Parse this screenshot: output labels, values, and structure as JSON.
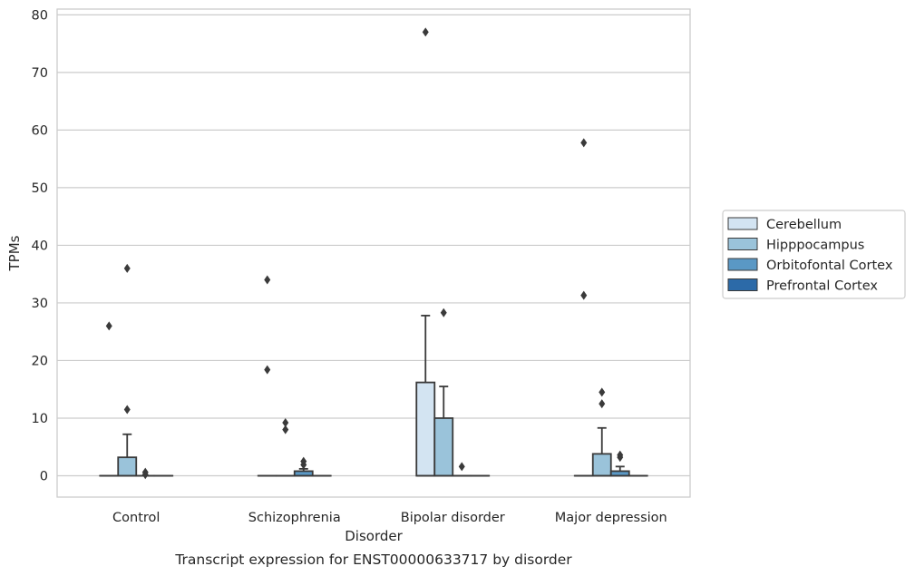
{
  "caption": "Transcript expression for ENST00000633717 by disorder",
  "chart_data": {
    "type": "box",
    "xlabel": "Disorder",
    "ylabel": "TPMs",
    "ylim": [
      -3.7,
      81
    ],
    "yticks": [
      0,
      10,
      20,
      30,
      40,
      50,
      60,
      70,
      80
    ],
    "grid": "horizontal",
    "legend_position": "right",
    "categories": [
      "Control",
      "Schizophrenia",
      "Bipolar disorder",
      "Major depression"
    ],
    "series": [
      {
        "name": "Cerebellum",
        "color": "#d3e4f2",
        "boxes": [
          {
            "q1": 0,
            "median": 0,
            "q3": 0,
            "whisker_low": 0,
            "whisker_high": 0,
            "outliers": [
              26
            ]
          },
          {
            "q1": 0,
            "median": 0,
            "q3": 0,
            "whisker_low": 0,
            "whisker_high": 0,
            "outliers": [
              34,
              18.4
            ]
          },
          {
            "q1": 0,
            "median": 0,
            "q3": 16.2,
            "whisker_low": 0,
            "whisker_high": 27.8,
            "outliers": [
              77
            ]
          },
          {
            "q1": 0,
            "median": 0,
            "q3": 0,
            "whisker_low": 0,
            "whisker_high": 0,
            "outliers": [
              57.8,
              31.3
            ]
          }
        ]
      },
      {
        "name": "Hipppocampus",
        "color": "#9ac3da",
        "boxes": [
          {
            "q1": 0,
            "median": 0,
            "q3": 3.2,
            "whisker_low": 0,
            "whisker_high": 7.2,
            "outliers": [
              36,
              11.5
            ]
          },
          {
            "q1": 0,
            "median": 0,
            "q3": 0,
            "whisker_low": 0,
            "whisker_high": 0,
            "outliers": [
              9.2,
              8
            ]
          },
          {
            "q1": 0,
            "median": 0,
            "q3": 10,
            "whisker_low": 0,
            "whisker_high": 15.5,
            "outliers": [
              28.3
            ]
          },
          {
            "q1": 0,
            "median": 0,
            "q3": 3.8,
            "whisker_low": 0,
            "whisker_high": 8.3,
            "outliers": [
              14.5,
              12.5
            ]
          }
        ]
      },
      {
        "name": "Orbitofontal Cortex",
        "color": "#5a98c5",
        "boxes": [
          {
            "q1": 0,
            "median": 0,
            "q3": 0,
            "whisker_low": 0,
            "whisker_high": 0,
            "outliers": [
              0.6,
              0.2
            ]
          },
          {
            "q1": 0,
            "median": 0,
            "q3": 0.8,
            "whisker_low": 0,
            "whisker_high": 1.2,
            "outliers": [
              2.5,
              1.9
            ]
          },
          {
            "q1": 0,
            "median": 0,
            "q3": 0,
            "whisker_low": 0,
            "whisker_high": 0,
            "outliers": [
              1.6
            ]
          },
          {
            "q1": 0,
            "median": 0,
            "q3": 0.8,
            "whisker_low": 0,
            "whisker_high": 1.6,
            "outliers": [
              3.6,
              3.2
            ]
          }
        ]
      },
      {
        "name": "Prefrontal Cortex",
        "color": "#2c6aa8",
        "boxes": [
          {
            "q1": 0,
            "median": 0,
            "q3": 0,
            "whisker_low": 0,
            "whisker_high": 0,
            "outliers": []
          },
          {
            "q1": 0,
            "median": 0,
            "q3": 0,
            "whisker_low": 0,
            "whisker_high": 0,
            "outliers": []
          },
          {
            "q1": 0,
            "median": 0,
            "q3": 0,
            "whisker_low": 0,
            "whisker_high": 0,
            "outliers": []
          },
          {
            "q1": 0,
            "median": 0,
            "q3": 0,
            "whisker_low": 0,
            "whisker_high": 0,
            "outliers": []
          }
        ]
      }
    ]
  }
}
